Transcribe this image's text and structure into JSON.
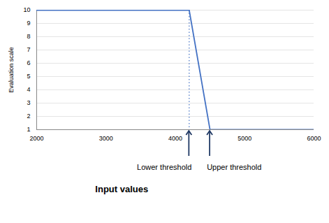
{
  "chart_data": {
    "type": "line",
    "x": [
      2000,
      4200,
      4500,
      6000
    ],
    "values": [
      10,
      10,
      1,
      1
    ],
    "color": "#4472C4",
    "xlim": [
      2000,
      6000
    ],
    "ylim": [
      1,
      10
    ],
    "xticks": [
      2000,
      3000,
      4000,
      5000,
      6000
    ],
    "yticks": [
      1,
      2,
      3,
      4,
      5,
      6,
      7,
      8,
      9,
      10
    ],
    "xlabel": "Input values",
    "ylabel": "Evaluation scale",
    "grid": "y",
    "reference_lines": [
      {
        "x": 4200,
        "color": "#4472C4",
        "line_style": "dotted"
      }
    ],
    "annotations": [
      {
        "text": "Lower threshold",
        "x": 4200,
        "color": "#1F3864"
      },
      {
        "text": "Upper threshold",
        "x": 4500,
        "color": "#1F3864"
      }
    ]
  }
}
